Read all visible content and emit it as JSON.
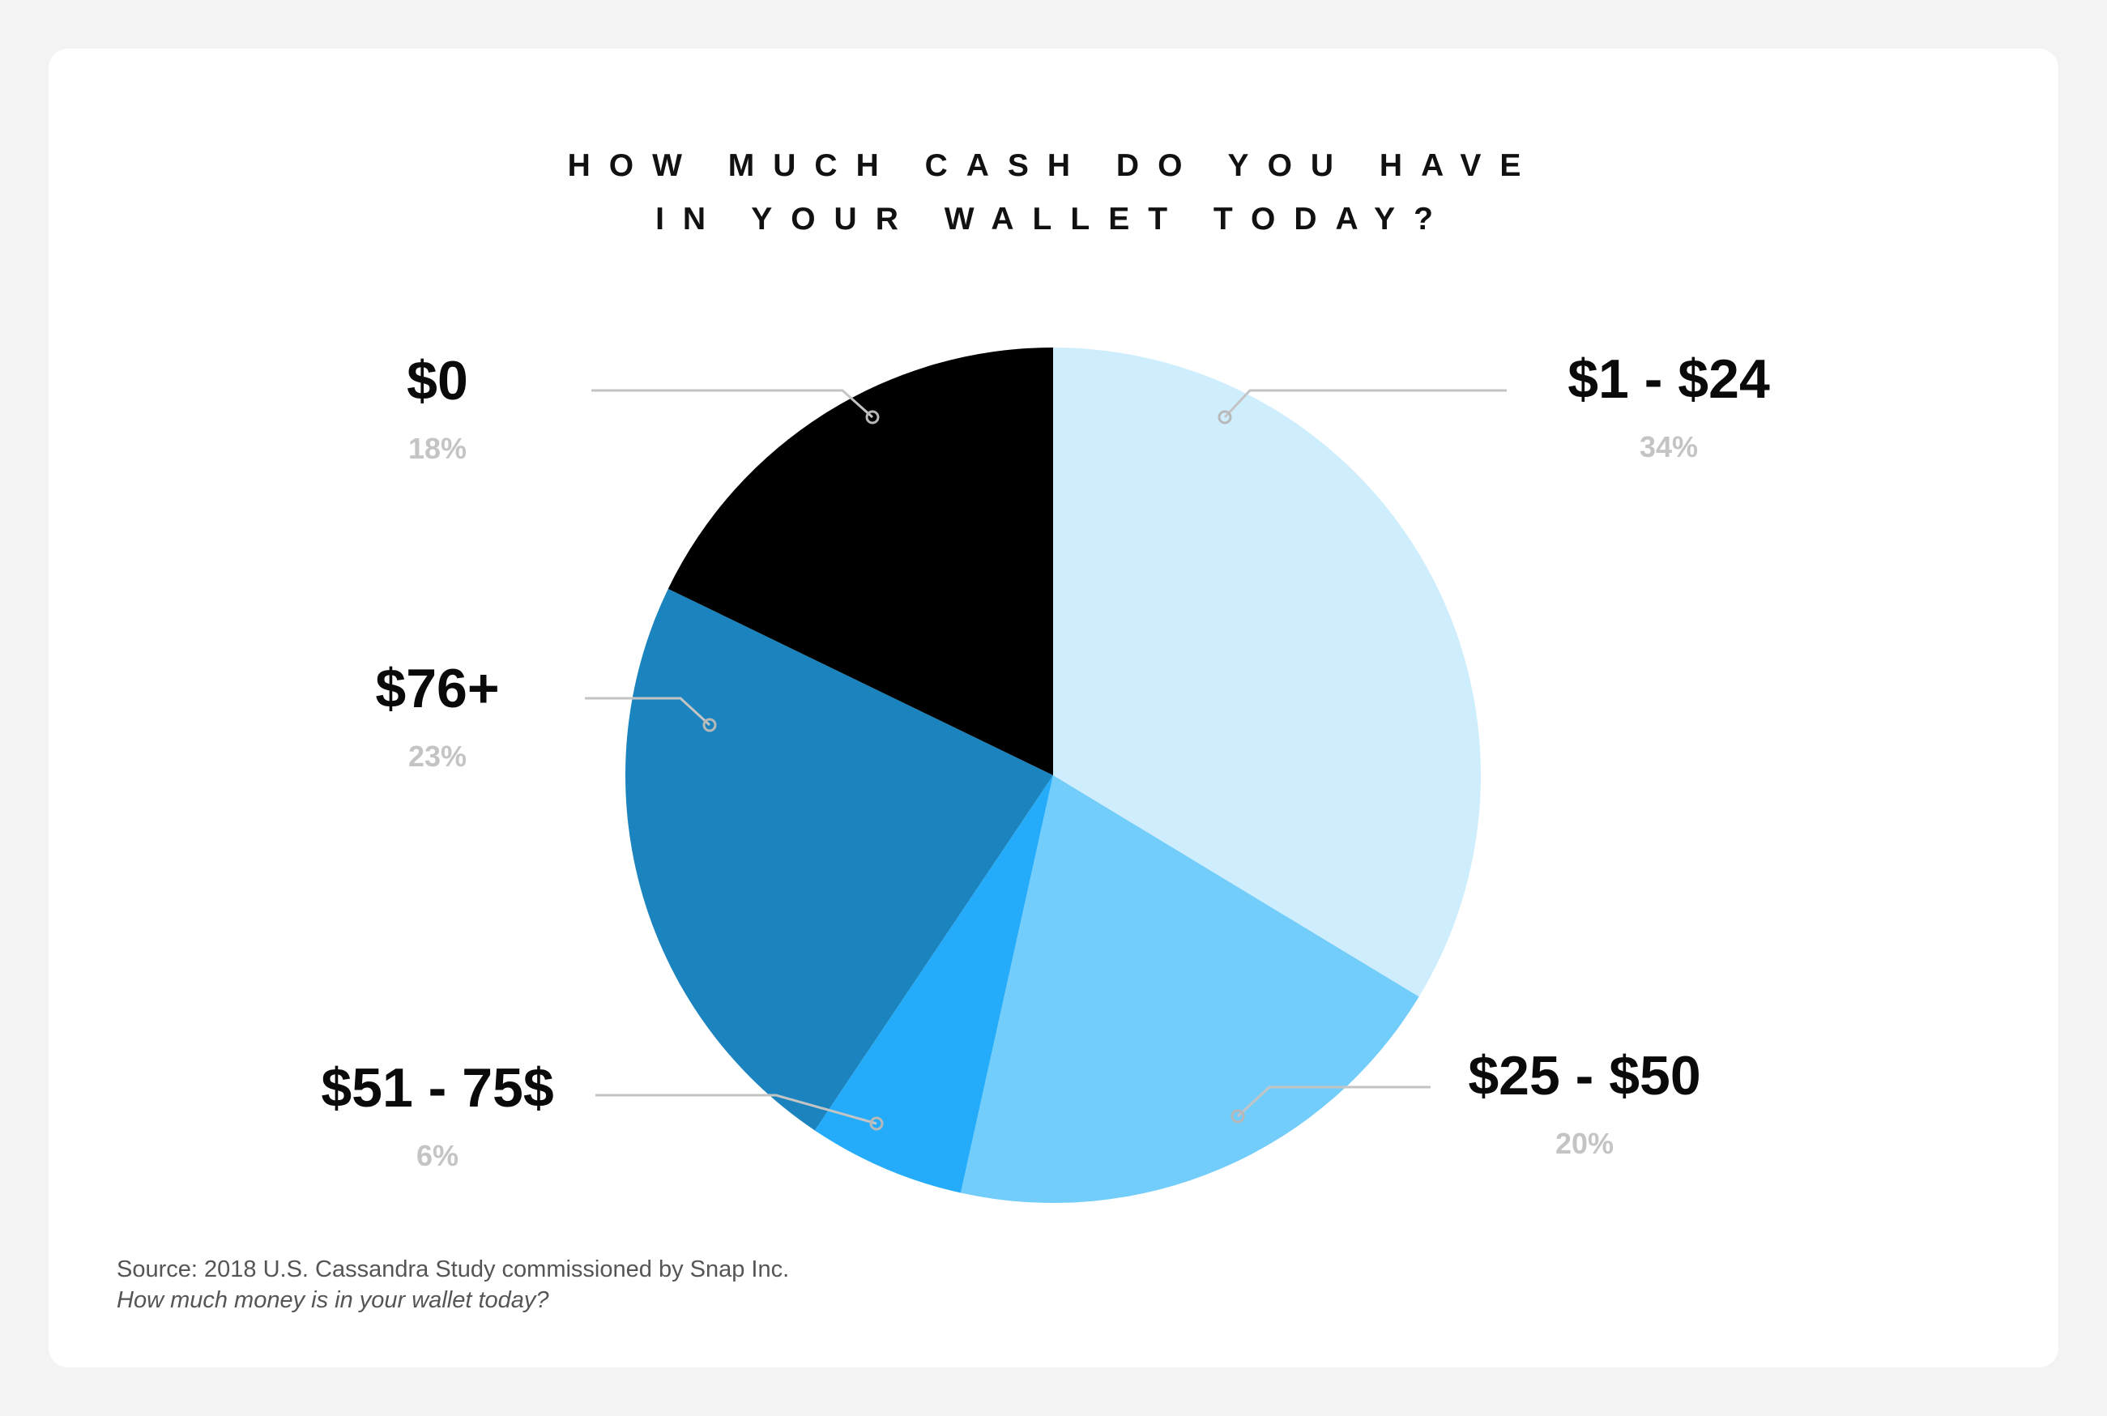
{
  "title_lines": [
    "How much cash do you have",
    "in your wallet today?"
  ],
  "source": {
    "line1": "Source: 2018 U.S. Cassandra Study commissioned by Snap Inc.",
    "line2": "How much money is in your wallet today?"
  },
  "chart_data": {
    "type": "pie",
    "title": "How much cash do you have in your wallet today?",
    "unit": "%",
    "slices": [
      {
        "label": "$1 - $24",
        "value": 34,
        "pct_label": "34%",
        "color": "#cfeefd"
      },
      {
        "label": "$25 - $50",
        "value": 20,
        "pct_label": "20%",
        "color": "#72cdfb"
      },
      {
        "label": "$51 - 75$",
        "value": 6,
        "pct_label": "6%",
        "color": "#24acfa"
      },
      {
        "label": "$76+",
        "value": 23,
        "pct_label": "23%",
        "color": "#1b84be"
      },
      {
        "label": "$0",
        "value": 18,
        "pct_label": "18%",
        "color": "#000000"
      }
    ],
    "start_angle": "12 o'clock",
    "direction": "clockwise"
  }
}
